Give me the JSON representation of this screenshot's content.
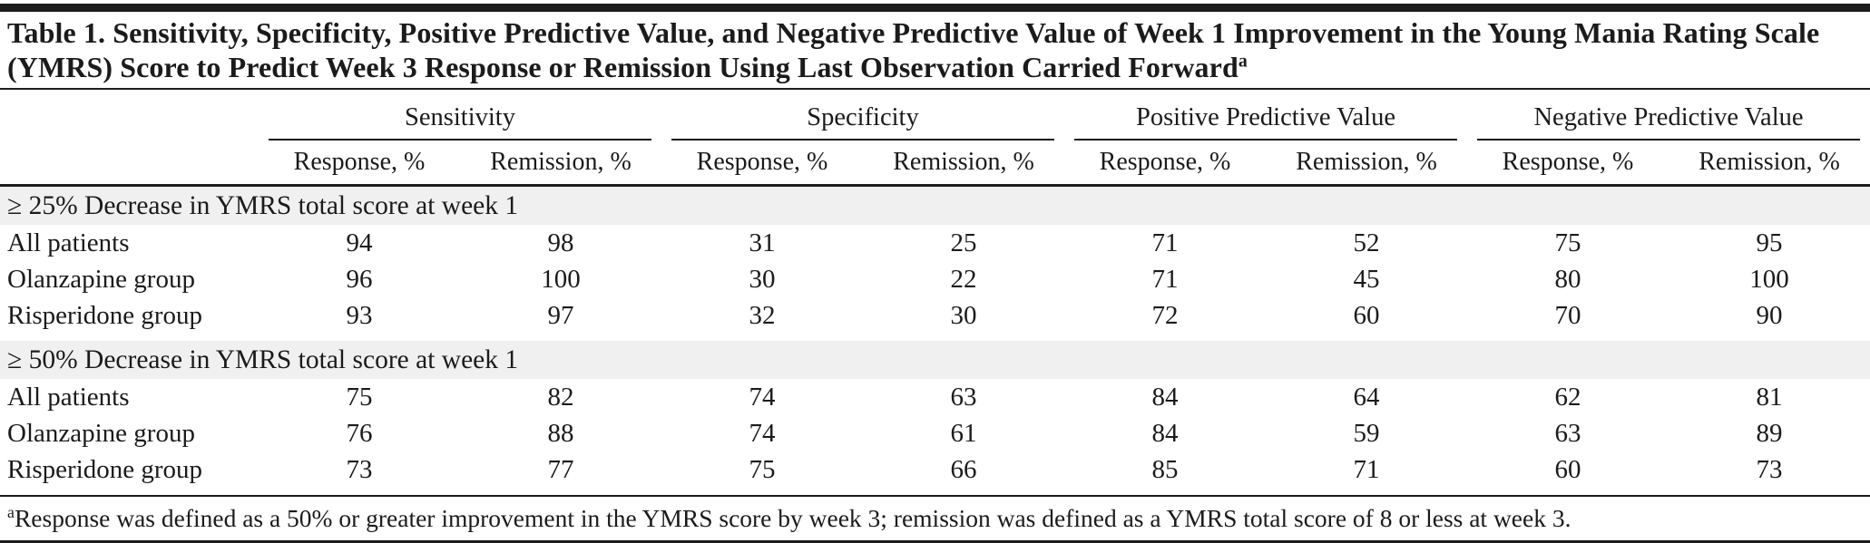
{
  "title": {
    "text": "Table 1. Sensitivity, Specificity, Positive Predictive Value, and Negative Predictive Value of Week 1 Improvement in the Young Mania Rating Scale (YMRS) Score to Predict Week 3 Response or Remission Using Last Observation Carried Forward",
    "sup": "a"
  },
  "columns": {
    "groups": [
      {
        "label": "Sensitivity"
      },
      {
        "label": "Specificity"
      },
      {
        "label": "Positive Predictive Value"
      },
      {
        "label": "Negative Predictive Value"
      }
    ],
    "sub": [
      "Response, %",
      "Remission, %",
      "Response, %",
      "Remission, %",
      "Response, %",
      "Remission, %",
      "Response, %",
      "Remission, %"
    ]
  },
  "sections": [
    {
      "header": "≥ 25% Decrease in YMRS total score at week 1",
      "rows": [
        {
          "label": "All patients",
          "values": [
            "94",
            "98",
            "31",
            "25",
            "71",
            "52",
            "75",
            "95"
          ]
        },
        {
          "label": "Olanzapine group",
          "values": [
            "96",
            "100",
            "30",
            "22",
            "71",
            "45",
            "80",
            "100"
          ]
        },
        {
          "label": "Risperidone group",
          "values": [
            "93",
            "97",
            "32",
            "30",
            "72",
            "60",
            "70",
            "90"
          ]
        }
      ]
    },
    {
      "header": "≥ 50% Decrease in YMRS total score at week 1",
      "rows": [
        {
          "label": "All patients",
          "values": [
            "75",
            "82",
            "74",
            "63",
            "84",
            "64",
            "62",
            "81"
          ]
        },
        {
          "label": "Olanzapine group",
          "values": [
            "76",
            "88",
            "74",
            "61",
            "84",
            "59",
            "63",
            "89"
          ]
        },
        {
          "label": "Risperidone group",
          "values": [
            "73",
            "77",
            "75",
            "66",
            "85",
            "71",
            "60",
            "73"
          ]
        }
      ]
    }
  ],
  "footnote": {
    "marker": "a",
    "text": "Response was defined as a 50% or greater improvement in the YMRS score by week 3; remission was defined as a YMRS total score of 8 or less at week 3."
  },
  "colors": {
    "text": "#1b1b1b",
    "rule": "#1c1c1c",
    "band_background": "#f0f0f0"
  }
}
